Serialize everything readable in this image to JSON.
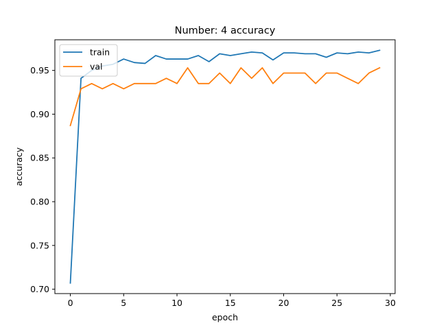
{
  "chart_data": {
    "type": "line",
    "title": "Number: 4 accuracy",
    "xlabel": "epoch",
    "ylabel": "accuracy",
    "xlim": [
      -1.45,
      30.45
    ],
    "ylim": [
      0.695,
      0.985
    ],
    "xticks": [
      0,
      5,
      10,
      15,
      20,
      25,
      30
    ],
    "yticks": [
      0.7,
      0.75,
      0.8,
      0.85,
      0.9,
      0.95
    ],
    "ytick_labels": [
      "0.70",
      "0.75",
      "0.80",
      "0.85",
      "0.90",
      "0.95"
    ],
    "xtick_labels": [
      "0",
      "5",
      "10",
      "15",
      "20",
      "25",
      "30"
    ],
    "grid": false,
    "legend_position": "top-left",
    "x": [
      0,
      1,
      2,
      3,
      4,
      5,
      6,
      7,
      8,
      9,
      10,
      11,
      12,
      13,
      14,
      15,
      16,
      17,
      18,
      19,
      20,
      21,
      22,
      23,
      24,
      25,
      26,
      27,
      28,
      29
    ],
    "series": [
      {
        "name": "train",
        "color": "#1f77b4",
        "values": [
          0.707,
          0.941,
          0.95,
          0.955,
          0.957,
          0.963,
          0.959,
          0.958,
          0.967,
          0.963,
          0.963,
          0.963,
          0.967,
          0.96,
          0.969,
          0.967,
          0.969,
          0.971,
          0.97,
          0.962,
          0.97,
          0.97,
          0.969,
          0.969,
          0.965,
          0.97,
          0.969,
          0.971,
          0.97,
          0.973
        ]
      },
      {
        "name": "val",
        "color": "#ff7f0e",
        "values": [
          0.887,
          0.929,
          0.935,
          0.929,
          0.935,
          0.929,
          0.935,
          0.935,
          0.935,
          0.941,
          0.935,
          0.953,
          0.935,
          0.935,
          0.947,
          0.935,
          0.953,
          0.941,
          0.953,
          0.935,
          0.947,
          0.947,
          0.947,
          0.935,
          0.947,
          0.947,
          0.941,
          0.935,
          0.947,
          0.953
        ]
      }
    ]
  }
}
